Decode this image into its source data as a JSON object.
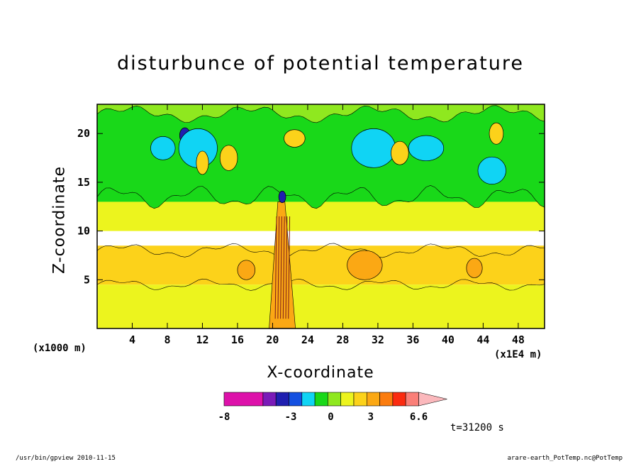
{
  "chart_data": {
    "type": "heatmap",
    "title": "disturbunce of potential temperature",
    "xlabel": "X-coordinate",
    "ylabel": "Z-coordinate",
    "x_unit_left": "(x1000 m)",
    "x_unit_right": "(x1E4 m)",
    "xlim": [
      0,
      51
    ],
    "ylim": [
      0,
      23
    ],
    "x_ticks": [
      4,
      8,
      12,
      16,
      20,
      24,
      28,
      32,
      36,
      40,
      44,
      48
    ],
    "x_tick_labels": [
      "4",
      "8",
      "12",
      "16",
      "20",
      "24",
      "28",
      "32",
      "36",
      "40",
      "44",
      "48"
    ],
    "y_ticks": [
      5,
      10,
      15,
      20
    ],
    "y_tick_labels": [
      "5",
      "10",
      "15",
      "20"
    ],
    "colorbar": {
      "levels": [
        -8,
        -6.5,
        -5,
        -4,
        -3,
        -2,
        -1,
        0,
        1,
        2,
        3,
        4,
        5,
        6.6
      ],
      "labels": [
        "-8",
        "-3",
        "0",
        "3",
        "6.6"
      ],
      "label_values": [
        -8,
        -3,
        0,
        3,
        6.6
      ],
      "colors": [
        "#dd11aa",
        "#dd11aa",
        "#7a1ab8",
        "#1f1fb0",
        "#1450e0",
        "#10d4f4",
        "#19d819",
        "#8fe81f",
        "#ecf41e",
        "#fcd21a",
        "#fba814",
        "#fb7c0e",
        "#fb2b10",
        "#fa7f78",
        "#fbb8bc"
      ]
    },
    "bands": [
      {
        "name": "upper-green",
        "z": [
          12.5,
          23
        ],
        "level": "#19d819"
      },
      {
        "name": "mid-yellow",
        "z": [
          10,
          13
        ],
        "level": "#ecf41e"
      },
      {
        "name": "orange-layer",
        "z": [
          4.5,
          8.5
        ],
        "level": "#fcd21a"
      },
      {
        "name": "lower-yellow",
        "z": [
          0,
          4.5
        ],
        "level": "#ecf41e"
      }
    ],
    "features": [
      {
        "x": 11.9,
        "z": 18.4,
        "rx": 0.8,
        "rz": 1.0,
        "color": "#1f1fb0"
      },
      {
        "x": 10.0,
        "z": 19.8,
        "rx": 0.6,
        "rz": 0.8,
        "color": "#1f1fb0"
      },
      {
        "x": 21.1,
        "z": 13.5,
        "rx": 0.4,
        "rz": 0.6,
        "color": "#1f1fb0"
      },
      {
        "x": 31.0,
        "z": 19.0,
        "rx": 0.4,
        "rz": 0.6,
        "color": "#1f1fb0"
      },
      {
        "x": 45.5,
        "z": 16.0,
        "rx": 0.4,
        "rz": 0.4,
        "color": "#1f1fb0"
      },
      {
        "x": 7.5,
        "z": 18.5,
        "rx": 1.4,
        "rz": 1.2,
        "color": "#10d4f4"
      },
      {
        "x": 11.5,
        "z": 18.5,
        "rx": 2.2,
        "rz": 2.0,
        "color": "#10d4f4"
      },
      {
        "x": 31.5,
        "z": 18.5,
        "rx": 2.5,
        "rz": 2.0,
        "color": "#10d4f4"
      },
      {
        "x": 37.5,
        "z": 18.5,
        "rx": 2.0,
        "rz": 1.3,
        "color": "#10d4f4"
      },
      {
        "x": 45.0,
        "z": 16.2,
        "rx": 1.6,
        "rz": 1.4,
        "color": "#10d4f4"
      },
      {
        "x": 30.5,
        "z": 6.5,
        "rx": 2.0,
        "rz": 1.5,
        "color": "#fba814"
      },
      {
        "x": 43.0,
        "z": 6.2,
        "rx": 0.9,
        "rz": 1.0,
        "color": "#fba814"
      },
      {
        "x": 17.0,
        "z": 6.0,
        "rx": 1.0,
        "rz": 1.0,
        "color": "#fba814"
      },
      {
        "x": 12.0,
        "z": 17.0,
        "rx": 0.7,
        "rz": 1.2,
        "color": "#fcd21a"
      },
      {
        "x": 15.0,
        "z": 17.5,
        "rx": 1.0,
        "rz": 1.3,
        "color": "#fcd21a"
      },
      {
        "x": 22.5,
        "z": 19.5,
        "rx": 1.2,
        "rz": 0.9,
        "color": "#fcd21a"
      },
      {
        "x": 34.5,
        "z": 18.0,
        "rx": 1.0,
        "rz": 1.2,
        "color": "#fcd21a"
      },
      {
        "x": 45.5,
        "z": 20.0,
        "rx": 0.8,
        "rz": 1.1,
        "color": "#fcd21a"
      }
    ],
    "time_label": "t=31200 s"
  },
  "footer": {
    "left": "/usr/bin/gpview   2010-11-15",
    "right": "arare-earth_PotTemp.nc@PotTemp"
  }
}
